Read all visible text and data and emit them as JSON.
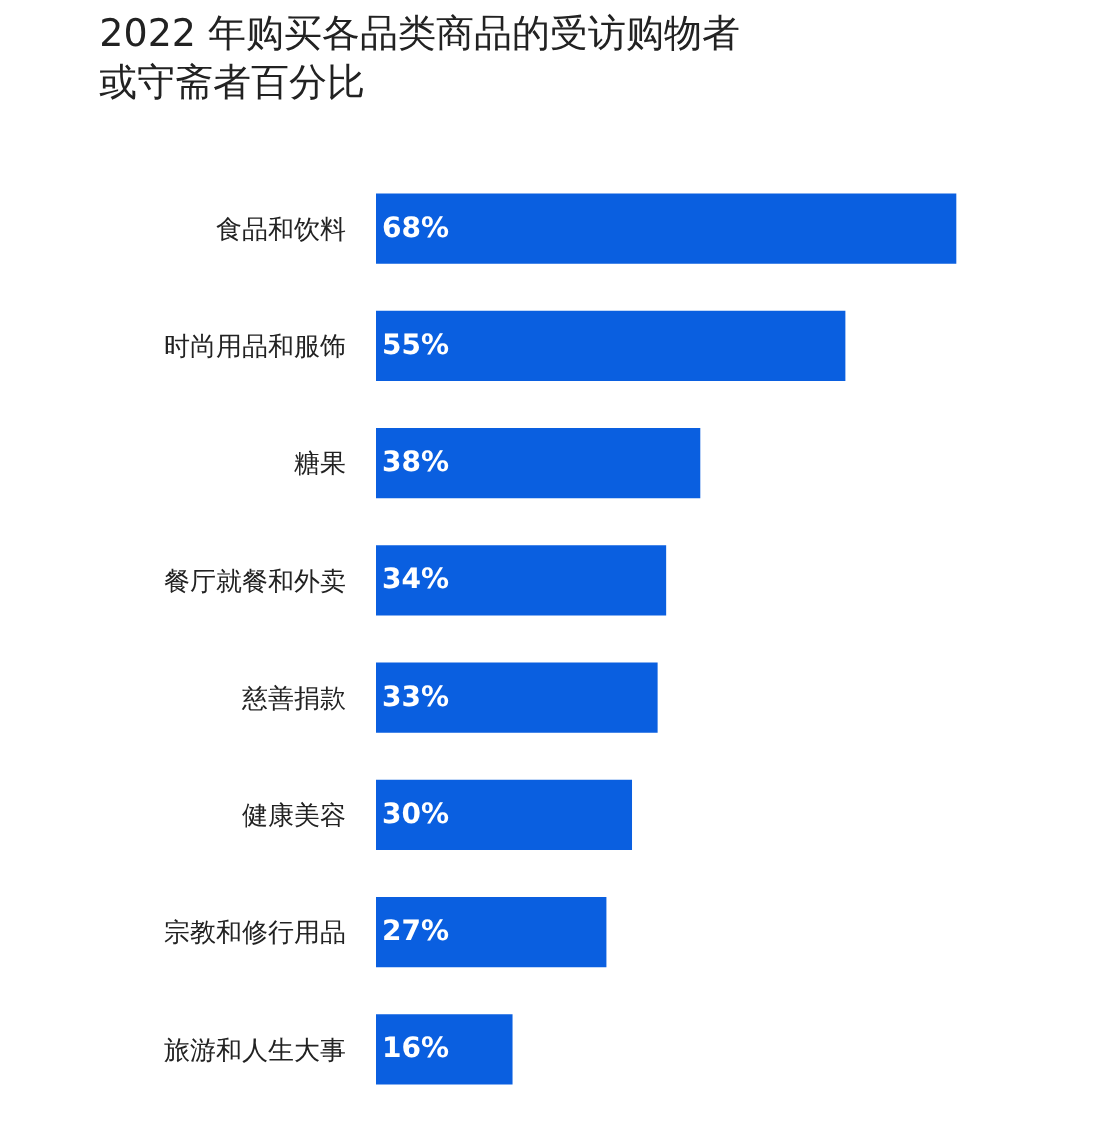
{
  "chart_data": {
    "type": "bar",
    "orientation": "horizontal",
    "title": "2022 年购买各品类商品的受访购物者或守斋者百分比",
    "categories": [
      "食品和饮料",
      "时尚用品和服饰",
      "糖果",
      "餐厅就餐和外卖",
      "慈善捐款",
      "健康美容",
      "宗教和修行用品",
      "旅游和人生大事"
    ],
    "values": [
      68,
      55,
      38,
      34,
      33,
      30,
      27,
      16
    ],
    "value_labels": [
      "68%",
      "55%",
      "38%",
      "34%",
      "33%",
      "30%",
      "27%",
      "16%"
    ],
    "color": "#0a5fe0",
    "grid": false,
    "legend": false,
    "tick_labels": "y"
  }
}
